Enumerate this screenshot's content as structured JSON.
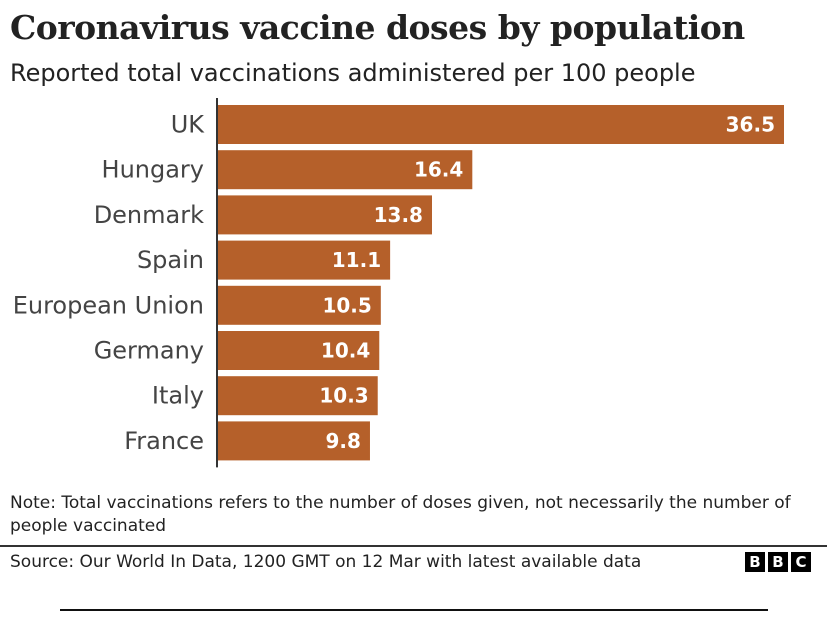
{
  "chart_data": {
    "type": "bar",
    "orientation": "horizontal",
    "title": "Coronavirus vaccine doses by population",
    "subtitle": "Reported total vaccinations administered per 100 people",
    "categories": [
      "UK",
      "Hungary",
      "Denmark",
      "Spain",
      "European Union",
      "Germany",
      "Italy",
      "France"
    ],
    "values": [
      36.5,
      16.4,
      13.8,
      11.1,
      10.5,
      10.4,
      10.3,
      9.8
    ],
    "data_labels": [
      "36.5",
      "16.4",
      "13.8",
      "11.1",
      "10.5",
      "10.4",
      "10.3",
      "9.8"
    ],
    "xlabel": "",
    "ylabel": "",
    "xlim": [
      0,
      36.5
    ],
    "grid": false,
    "bar_color": "#b5602a"
  },
  "note": "Note: Total vaccinations refers to the number of doses given, not necessarily the number of people vaccinated",
  "source": "Source: Our World In Data, 1200 GMT on 12 Mar with latest available data",
  "logo": {
    "letters": [
      "B",
      "B",
      "C"
    ]
  }
}
